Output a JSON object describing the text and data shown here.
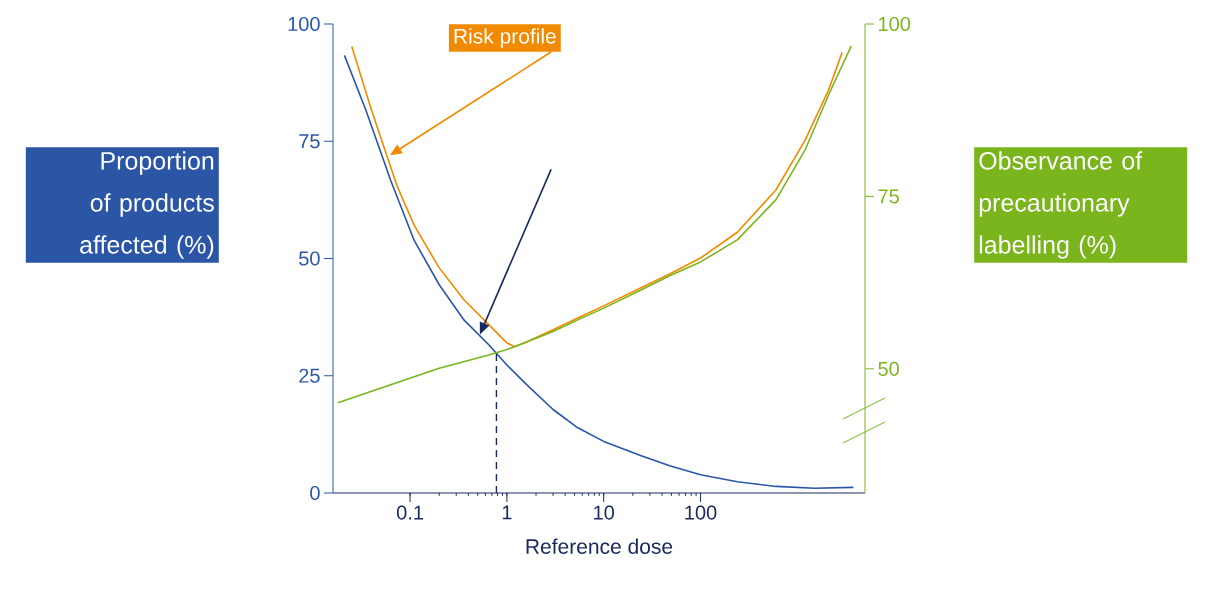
{
  "chart_data": {
    "type": "line",
    "xlabel": "Reference dose",
    "ylabel": "Proportion of products affected (%)",
    "y2label": "Observance of precautionary labelling (%)",
    "log": "x",
    "grid": false,
    "marker": "none",
    "line_style": "solid",
    "xlim": [
      0.016,
      5000
    ],
    "xticks": [
      0.1,
      1,
      10,
      100
    ],
    "ylim": [
      0,
      100
    ],
    "yticks": [
      0,
      25,
      50,
      75,
      100
    ],
    "y2lim": [
      32,
      100
    ],
    "y2ticks": [
      50,
      75,
      100
    ],
    "series": [
      {
        "color": "#2a56a5",
        "x": [
          0.021,
          0.035,
          0.063,
          0.11,
          0.2,
          0.36,
          0.65,
          1,
          1.6,
          3,
          5.4,
          10,
          24,
          48,
          100,
          240,
          600,
          1500,
          3800
        ],
        "values": [
          93.3,
          81.6,
          66.7,
          53.9,
          44.4,
          36.9,
          31.6,
          27.3,
          23.1,
          17.8,
          13.9,
          11.0,
          8.0,
          5.8,
          3.9,
          2.4,
          1.4,
          1.0,
          1.2
        ]
      },
      {
        "color": "#f08a00",
        "x": [
          0.025,
          0.04,
          0.073,
          0.11,
          0.2,
          0.36,
          0.65,
          1,
          1.2,
          1.6,
          3,
          5.4,
          10,
          24,
          48,
          100,
          240,
          600,
          1200,
          2100,
          2900
        ],
        "values": [
          95.2,
          81.6,
          65.6,
          57.1,
          48.0,
          41.2,
          35.9,
          32.0,
          31.2,
          32.2,
          34.8,
          37.3,
          39.9,
          43.7,
          46.7,
          50.1,
          55.6,
          64.6,
          75.2,
          85.9,
          93.9
        ]
      },
      {
        "color": "#7ab51d",
        "axis": "y2",
        "x": [
          0.018,
          0.063,
          0.2,
          0.65,
          1,
          1.6,
          3,
          5.4,
          10,
          24,
          48,
          100,
          240,
          600,
          1200,
          2100,
          3600
        ],
        "values": [
          45.1,
          47.7,
          50.1,
          52.0,
          52.8,
          53.9,
          55.4,
          57.1,
          58.8,
          61.4,
          63.5,
          65.5,
          68.7,
          74.5,
          81.7,
          89.7,
          96.8
        ]
      }
    ],
    "ref_lines": [
      {
        "axis": "x",
        "value": 0.78,
        "color": "#1a2a5e",
        "line_style": "dashed"
      }
    ],
    "annotations": [
      "Risk profile"
    ]
  }
}
